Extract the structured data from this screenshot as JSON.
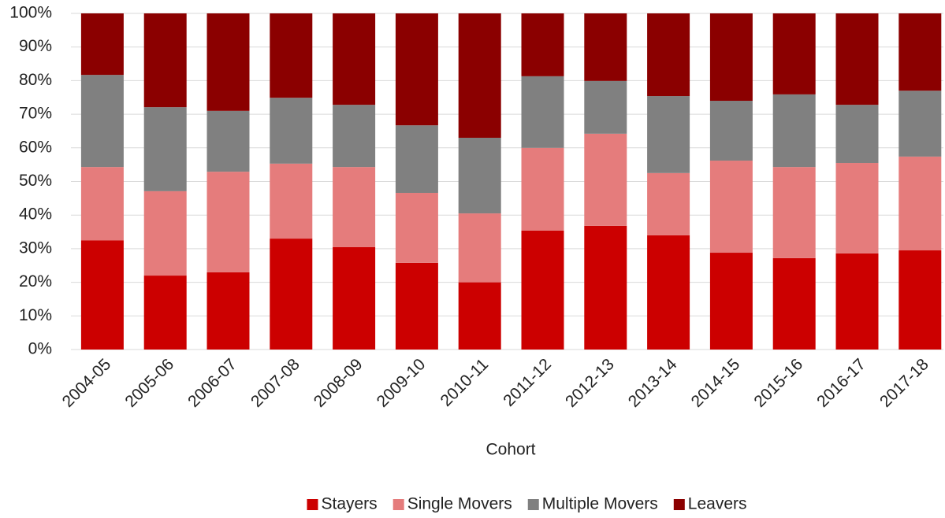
{
  "chart_data": {
    "type": "stacked_bar",
    "x_label": "Cohort",
    "categories": [
      "2004-05",
      "2005-06",
      "2006-07",
      "2007-08",
      "2008-09",
      "2009-10",
      "2010-11",
      "2011-12",
      "2012-13",
      "2013-14",
      "2014-15",
      "2015-16",
      "2016-17",
      "2017-18"
    ],
    "series": [
      {
        "name": "Stayers",
        "color": "#cc0000",
        "values": [
          32.5,
          22,
          23,
          33,
          30.5,
          25.8,
          20,
          35.4,
          36.8,
          34,
          28.8,
          27.2,
          28.6,
          29.5
        ]
      },
      {
        "name": "Single Movers",
        "color": "#e57c7c",
        "values": [
          21.8,
          25.1,
          29.9,
          22.3,
          23.8,
          20.8,
          20.5,
          24.6,
          27.4,
          18.5,
          27.4,
          27.1,
          26.9,
          27.9
        ]
      },
      {
        "name": "Multiple Movers",
        "color": "#808080",
        "values": [
          27.4,
          25,
          18.1,
          19.6,
          18.5,
          20.1,
          22.5,
          21.3,
          15.7,
          22.9,
          17.8,
          21.6,
          17.3,
          19.6
        ]
      },
      {
        "name": "Leavers",
        "color": "#8b0000",
        "values": [
          18.3,
          27.9,
          29,
          25.1,
          27.2,
          33.3,
          37,
          18.7,
          20.1,
          24.6,
          26,
          24.1,
          27.2,
          23
        ]
      }
    ],
    "ylim": [
      0,
      100
    ],
    "yticks": [
      {
        "value": 0,
        "label": "0%"
      },
      {
        "value": 10,
        "label": "10%"
      },
      {
        "value": 20,
        "label": "20%"
      },
      {
        "value": 30,
        "label": "30%"
      },
      {
        "value": 40,
        "label": "40%"
      },
      {
        "value": 50,
        "label": "50%"
      },
      {
        "value": 60,
        "label": "60%"
      },
      {
        "value": 70,
        "label": "70%"
      },
      {
        "value": 80,
        "label": "80%"
      },
      {
        "value": 90,
        "label": "90%"
      },
      {
        "value": 100,
        "label": "100%"
      }
    ],
    "grid": true,
    "legend": "bottom"
  }
}
